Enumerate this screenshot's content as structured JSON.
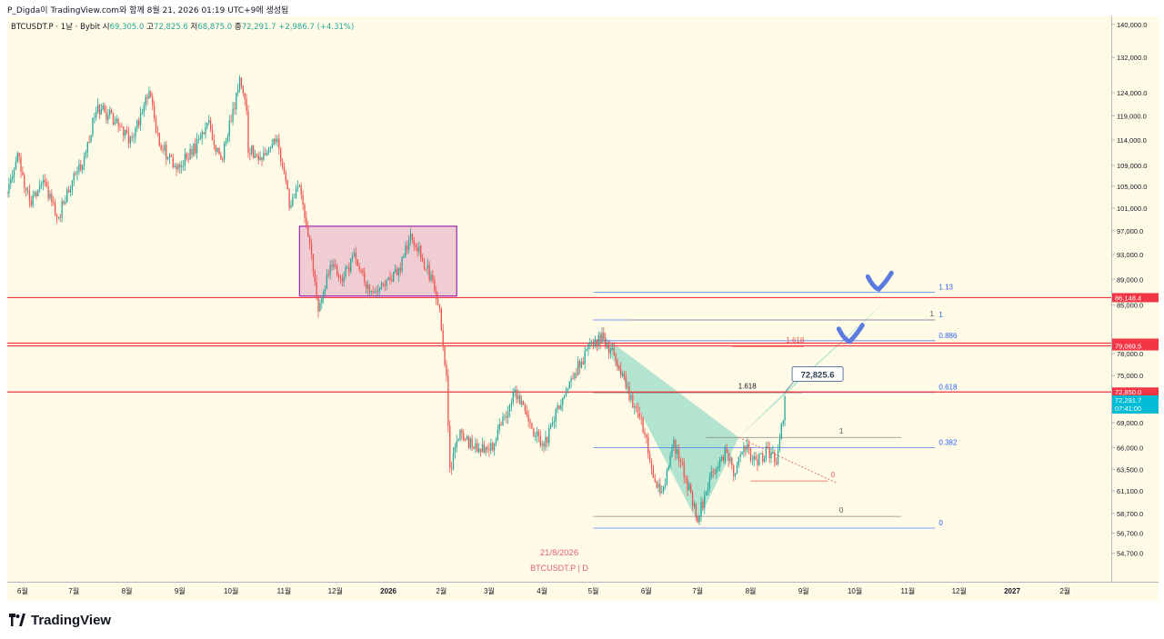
{
  "header": {
    "publisher_line": "P_Digda이 TradingView.com와 함께 8월 21, 2026 01:19 UTC+9에 생성됨"
  },
  "legend": {
    "symbol": "BTCUSDT.P · 1날 · Bybit",
    "open_label": "시",
    "open": "69,305.0",
    "high_label": "고",
    "high": "72,825.6",
    "low_label": "저",
    "low": "68,875.0",
    "close_label": "종",
    "close": "72,291.7",
    "change": "+2,986.7 (+4.31%)"
  },
  "watermark": {
    "date": "21/8/2026",
    "symbol": "BTCUSDT.P | D"
  },
  "brand": {
    "name": "TradingView"
  },
  "colors": {
    "plot_bg": "#fffbe6",
    "up": "#26a69a",
    "down": "#ef5350",
    "support_line": "#f23645",
    "fib_line": "#2962ff",
    "harmonic_fill": "#7ed6c2",
    "box_fill": "#e8b4c8",
    "box_border": "#9c27b0",
    "arrow": "#5b7be0"
  },
  "chart_data": {
    "type": "candlestick",
    "y_scale": "log",
    "ylim": [
      52000,
      142000
    ],
    "y_ticks": [
      {
        "v": 140000,
        "label": "140,000.0"
      },
      {
        "v": 132000,
        "label": "132,000.0"
      },
      {
        "v": 124000,
        "label": "124,000.0"
      },
      {
        "v": 119000,
        "label": "119,000.0"
      },
      {
        "v": 114000,
        "label": "114,000.0"
      },
      {
        "v": 109000,
        "label": "109,000.0"
      },
      {
        "v": 105000,
        "label": "105,000.0"
      },
      {
        "v": 101000,
        "label": "101,000.0"
      },
      {
        "v": 97000,
        "label": "97,000.0"
      },
      {
        "v": 93000,
        "label": "93,000.0"
      },
      {
        "v": 89000,
        "label": "89,000.0"
      },
      {
        "v": 85000,
        "label": "85,000.0"
      },
      {
        "v": 78000,
        "label": "78,000.0"
      },
      {
        "v": 75000,
        "label": "75,000.0"
      },
      {
        "v": 69000,
        "label": "69,000.0"
      },
      {
        "v": 66000,
        "label": "66,000.0"
      },
      {
        "v": 63500,
        "label": "63,500.0"
      },
      {
        "v": 61100,
        "label": "61,100.0"
      },
      {
        "v": 58700,
        "label": "58,700.0"
      },
      {
        "v": 56700,
        "label": "56,700.0"
      },
      {
        "v": 54700,
        "label": "54,700.0"
      }
    ],
    "x_axis": {
      "start": "2025-05-23",
      "end": "2027-02-28",
      "ticks": [
        {
          "date": "2025-06-01",
          "label": "6월"
        },
        {
          "date": "2025-07-01",
          "label": "7월"
        },
        {
          "date": "2025-08-01",
          "label": "8월"
        },
        {
          "date": "2025-09-01",
          "label": "9월"
        },
        {
          "date": "2025-10-01",
          "label": "10월"
        },
        {
          "date": "2025-11-01",
          "label": "11월"
        },
        {
          "date": "2025-12-01",
          "label": "12월"
        },
        {
          "date": "2026-01-01",
          "label": "2026"
        },
        {
          "date": "2026-02-01",
          "label": "2월"
        },
        {
          "date": "2026-03-01",
          "label": "3월"
        },
        {
          "date": "2026-04-01",
          "label": "4월"
        },
        {
          "date": "2026-05-01",
          "label": "5월"
        },
        {
          "date": "2026-06-01",
          "label": "6월"
        },
        {
          "date": "2026-07-01",
          "label": "7월"
        },
        {
          "date": "2026-08-01",
          "label": "8월"
        },
        {
          "date": "2026-09-01",
          "label": "9월"
        },
        {
          "date": "2026-10-01",
          "label": "10월"
        },
        {
          "date": "2026-11-01",
          "label": "11월"
        },
        {
          "date": "2026-12-01",
          "label": "12월"
        },
        {
          "date": "2027-01-01",
          "label": "2027"
        },
        {
          "date": "2027-02-01",
          "label": "2월"
        }
      ]
    },
    "price_path": [
      {
        "date": "2025-05-23",
        "price": 104000
      },
      {
        "date": "2025-05-29",
        "price": 111000
      },
      {
        "date": "2025-06-05",
        "price": 102000
      },
      {
        "date": "2025-06-12",
        "price": 106000
      },
      {
        "date": "2025-06-22",
        "price": 99500
      },
      {
        "date": "2025-07-01",
        "price": 107000
      },
      {
        "date": "2025-07-07",
        "price": 109500
      },
      {
        "date": "2025-07-14",
        "price": 121000
      },
      {
        "date": "2025-07-22",
        "price": 119000
      },
      {
        "date": "2025-08-02",
        "price": 114000
      },
      {
        "date": "2025-08-08",
        "price": 117500
      },
      {
        "date": "2025-08-14",
        "price": 124000
      },
      {
        "date": "2025-08-20",
        "price": 113000
      },
      {
        "date": "2025-08-31",
        "price": 108500
      },
      {
        "date": "2025-09-10",
        "price": 112500
      },
      {
        "date": "2025-09-18",
        "price": 117000
      },
      {
        "date": "2025-09-25",
        "price": 109000
      },
      {
        "date": "2025-10-01",
        "price": 118500
      },
      {
        "date": "2025-10-06",
        "price": 126000
      },
      {
        "date": "2025-10-10",
        "price": 120000
      },
      {
        "date": "2025-10-11",
        "price": 112000
      },
      {
        "date": "2025-10-20",
        "price": 110500
      },
      {
        "date": "2025-10-28",
        "price": 114500
      },
      {
        "date": "2025-11-04",
        "price": 101500
      },
      {
        "date": "2025-11-10",
        "price": 105500
      },
      {
        "date": "2025-11-17",
        "price": 92500
      },
      {
        "date": "2025-11-21",
        "price": 84500
      },
      {
        "date": "2025-11-28",
        "price": 91500
      },
      {
        "date": "2025-12-05",
        "price": 89000
      },
      {
        "date": "2025-12-12",
        "price": 92500
      },
      {
        "date": "2025-12-20",
        "price": 87500
      },
      {
        "date": "2025-12-31",
        "price": 88000
      },
      {
        "date": "2026-01-08",
        "price": 91000
      },
      {
        "date": "2026-01-14",
        "price": 96500
      },
      {
        "date": "2026-01-20",
        "price": 93000
      },
      {
        "date": "2026-01-27",
        "price": 88500
      },
      {
        "date": "2026-01-31",
        "price": 84000
      },
      {
        "date": "2026-02-04",
        "price": 75000
      },
      {
        "date": "2026-02-06",
        "price": 63500
      },
      {
        "date": "2026-02-12",
        "price": 67500
      },
      {
        "date": "2026-02-20",
        "price": 66000
      },
      {
        "date": "2026-03-01",
        "price": 65500
      },
      {
        "date": "2026-03-08",
        "price": 68500
      },
      {
        "date": "2026-03-16",
        "price": 73000
      },
      {
        "date": "2026-03-25",
        "price": 68500
      },
      {
        "date": "2026-04-02",
        "price": 66000
      },
      {
        "date": "2026-04-10",
        "price": 70500
      },
      {
        "date": "2026-04-20",
        "price": 75500
      },
      {
        "date": "2026-04-28",
        "price": 78500
      },
      {
        "date": "2026-05-06",
        "price": 80500
      },
      {
        "date": "2026-05-13",
        "price": 77500
      },
      {
        "date": "2026-05-22",
        "price": 72500
      },
      {
        "date": "2026-05-31",
        "price": 68000
      },
      {
        "date": "2026-06-05",
        "price": 62000
      },
      {
        "date": "2026-06-10",
        "price": 61000
      },
      {
        "date": "2026-06-17",
        "price": 66500
      },
      {
        "date": "2026-06-24",
        "price": 62500
      },
      {
        "date": "2026-07-01",
        "price": 58000
      },
      {
        "date": "2026-07-08",
        "price": 62500
      },
      {
        "date": "2026-07-17",
        "price": 65500
      },
      {
        "date": "2026-07-23",
        "price": 63000
      },
      {
        "date": "2026-07-28",
        "price": 66500
      },
      {
        "date": "2026-08-04",
        "price": 64000
      },
      {
        "date": "2026-08-10",
        "price": 65500
      },
      {
        "date": "2026-08-16",
        "price": 64500
      },
      {
        "date": "2026-08-20",
        "price": 69300
      },
      {
        "date": "2026-08-21",
        "price": 72291.7
      }
    ],
    "horizontal_lines": [
      {
        "price": 86148.4,
        "color": "#f23645",
        "label": "86,148.4",
        "from": "2025-05-23",
        "to": "2027-02-28"
      },
      {
        "price": 79457.4,
        "color": "#f23645",
        "label": "79,457.4",
        "from": "2025-05-23",
        "to": "2027-02-28"
      },
      {
        "price": 79069.5,
        "color": "#f23645",
        "label": "79,069.5",
        "from": "2025-05-23",
        "to": "2027-02-28"
      },
      {
        "price": 72850.0,
        "color": "#f23645",
        "label": "72,850.0",
        "from": "2025-05-23",
        "to": "2027-02-28"
      }
    ],
    "last_price": {
      "value": "72,291.7",
      "countdown": "07:41:00",
      "price": 72291.7,
      "color": "#00bcd4"
    },
    "fib_retracement": [
      {
        "level": "1.13",
        "price": 87000
      },
      {
        "level": "1",
        "price": 82800
      },
      {
        "level": "0.886",
        "price": 79800
      },
      {
        "level": "0.618",
        "price": 72800
      },
      {
        "level": "0.382",
        "price": 66000
      },
      {
        "level": "0",
        "price": 57200
      }
    ],
    "fib_range": {
      "from": "2026-05-01",
      "to": "2026-11-17"
    },
    "abcd_pattern": {
      "upper": [
        {
          "level": "1",
          "price": 82800,
          "from": "2026-05-21",
          "to": "2026-11-17"
        },
        {
          "level": "1.618",
          "price": 79000,
          "from": "2026-07-21",
          "to": "2026-09-01"
        }
      ],
      "middle": [
        {
          "level": "1.618",
          "price": 72800,
          "from": "2026-05-01",
          "to": "2026-08-31"
        },
        {
          "level": "1",
          "price": 67200,
          "from": "2026-07-06",
          "to": "2026-10-28"
        },
        {
          "level": "0",
          "price": 58400,
          "from": "2026-05-01",
          "to": "2026-10-28"
        }
      ],
      "lower": [
        {
          "level": "0",
          "price": 62200,
          "from": "2026-08-01",
          "to": "2026-09-15"
        }
      ],
      "label_dates": {
        "upper_1": "2026-11-15",
        "upper_1618": "2026-08-27",
        "middle_1618": "2026-07-30",
        "middle_1": "2026-09-23",
        "middle_0": "2026-09-23",
        "lower_0": "2026-09-18"
      }
    },
    "harmonic_points": [
      {
        "date": "2026-05-04",
        "price": 81000
      },
      {
        "date": "2026-07-01",
        "price": 57800
      },
      {
        "date": "2026-07-25",
        "price": 67200
      },
      {
        "date": "2026-08-21",
        "price": 72825.6
      },
      {
        "date": "2026-10-23",
        "price": 86500
      }
    ],
    "projection_line": [
      {
        "date": "2026-07-25",
        "price": 67200
      },
      {
        "date": "2026-09-20",
        "price": 62000
      }
    ],
    "callout": {
      "text": "72,825.6",
      "date": "2026-08-21",
      "price": 72825.6
    },
    "range_box": {
      "from": "2025-11-10",
      "to": "2026-02-10",
      "top": 97800,
      "bottom": 86400
    },
    "check_marks": [
      {
        "date": "2026-10-16",
        "price": 88000
      },
      {
        "date": "2026-09-29",
        "price": 80200
      }
    ]
  }
}
